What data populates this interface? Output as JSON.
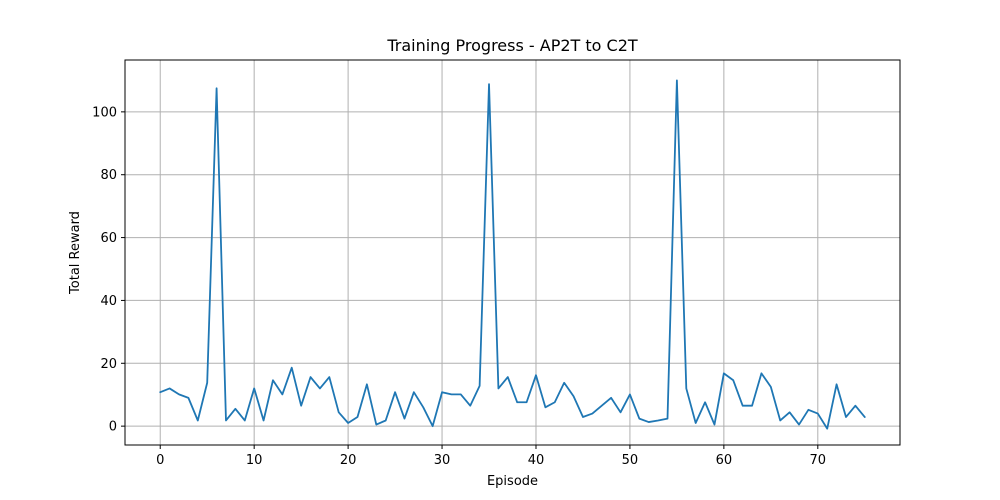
{
  "chart_data": {
    "type": "line",
    "title": "Training Progress - AP2T to C2T",
    "xlabel": "Episode",
    "ylabel": "Total Reward",
    "xlim": [
      -3.75,
      78.75
    ],
    "ylim": [
      -6,
      116.5
    ],
    "xticks": [
      0,
      10,
      20,
      30,
      40,
      50,
      60,
      70
    ],
    "yticks": [
      0,
      20,
      40,
      60,
      80,
      100
    ],
    "grid": true,
    "series": [
      {
        "color": "#1f77b4",
        "x": [
          0,
          1,
          2,
          3,
          4,
          5,
          6,
          7,
          8,
          9,
          10,
          11,
          12,
          13,
          14,
          15,
          16,
          17,
          18,
          19,
          20,
          21,
          22,
          23,
          24,
          25,
          26,
          27,
          28,
          29,
          30,
          31,
          32,
          33,
          34,
          35,
          36,
          37,
          38,
          39,
          40,
          41,
          42,
          43,
          44,
          45,
          46,
          47,
          48,
          49,
          50,
          51,
          52,
          53,
          54,
          55,
          56,
          57,
          58,
          59,
          60,
          61,
          62,
          63,
          64,
          65,
          66,
          67,
          68,
          69,
          70,
          71,
          72,
          73,
          74,
          75
        ],
        "y": [
          10.8,
          12,
          10.1,
          9,
          1.8,
          13.8,
          107.5,
          1.8,
          5.5,
          1.8,
          12,
          1.8,
          14.6,
          10.1,
          18.6,
          6.5,
          15.6,
          12,
          15.6,
          4.4,
          1,
          2.9,
          13.3,
          0.5,
          1.8,
          10.8,
          2.4,
          10.8,
          6,
          0,
          10.8,
          10.1,
          10.1,
          6.5,
          12.8,
          108.8,
          12,
          15.6,
          7.6,
          7.6,
          16.2,
          6,
          7.6,
          13.8,
          9.5,
          2.9,
          4,
          6.5,
          9,
          4.4,
          10.1,
          2.4,
          1.3,
          1.8,
          2.4,
          110,
          12,
          1,
          7.6,
          0.5,
          16.8,
          14.6,
          6.5,
          6.5,
          16.8,
          12.5,
          1.8,
          4.4,
          0.5,
          5.2,
          4,
          -0.8,
          13.3,
          2.9,
          6.5,
          2.9
        ]
      }
    ]
  }
}
